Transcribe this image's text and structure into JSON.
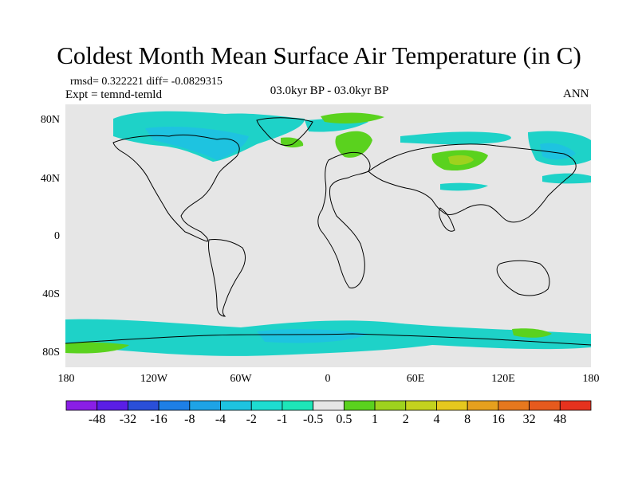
{
  "title": "Coldest Month Mean Surface Air Temperature (in C)",
  "stats": {
    "rmsd": "rmsd= 0.322221 diff= -0.0829315"
  },
  "expt": "Expt = temnd-temld",
  "period": "03.0kyr BP - 03.0kyr BP",
  "season": "ANN",
  "axes": {
    "y_ticks": [
      "80N",
      "40N",
      "0",
      "40S",
      "80S"
    ],
    "x_ticks": [
      "180",
      "120W",
      "60W",
      "0",
      "60E",
      "120E",
      "180"
    ]
  },
  "colorbar": {
    "colors": [
      "#8a1ee6",
      "#5a1ee6",
      "#2a4fd8",
      "#1e7fe6",
      "#1ea3e6",
      "#1ec3e0",
      "#1edcd0",
      "#1ee6b8",
      "#e6e6e6",
      "#5ad21e",
      "#9ed21e",
      "#c4d21e",
      "#e6c81e",
      "#e6a01e",
      "#e6781e",
      "#e65a1e",
      "#e6321e"
    ],
    "labels": [
      "-48",
      "-32",
      "-16",
      "-8",
      "-4",
      "-2",
      "-1",
      "-0.5",
      "0.5",
      "1",
      "2",
      "4",
      "8",
      "16",
      "32",
      "48"
    ]
  },
  "map_colors": {
    "ocean": "#e6e6e6",
    "coast": "#000000",
    "cool": "#1ed2c8",
    "coolmid": "#1ec3e0",
    "warm": "#5ad21e",
    "warmer": "#9ed21e"
  }
}
